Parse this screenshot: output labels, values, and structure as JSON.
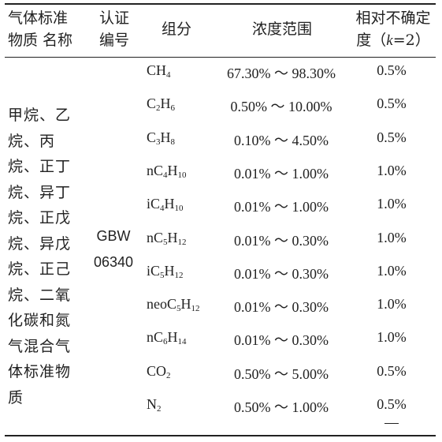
{
  "table": {
    "headers": {
      "name_line1": "气体标准",
      "name_line2": "物质 名称",
      "cert_line1": "认证",
      "cert_line2": "编号",
      "component": "组分",
      "range": "浓度范围",
      "unc_line1": "相对不确定",
      "unc_line2_prefix": "度（",
      "unc_k": "k",
      "unc_line2_suffix": "=2）"
    },
    "name_lines": [
      "甲烷、乙",
      "烷、丙",
      "烷、正丁",
      "烷、异丁",
      "烷、正戊",
      "烷、异戊",
      "烷、正己",
      "烷、二氧",
      "化碳和氮",
      "气混合气",
      "体标准物",
      "质"
    ],
    "cert_lines": [
      "GBW",
      "06340"
    ],
    "rows": [
      {
        "comp": [
          [
            "CH",
            ""
          ],
          [
            "4",
            "sub"
          ]
        ],
        "range": "67.30% ～ 98.30%",
        "unc": "0.5%"
      },
      {
        "comp": [
          [
            "C",
            ""
          ],
          [
            "2",
            "sub"
          ],
          [
            "H",
            ""
          ],
          [
            "6",
            "sub"
          ]
        ],
        "range": "0.50% ～ 10.00%",
        "unc": "0.5%"
      },
      {
        "comp": [
          [
            "C",
            ""
          ],
          [
            "3",
            "sub"
          ],
          [
            "H",
            ""
          ],
          [
            "8",
            "sub"
          ]
        ],
        "range": "0.10% ～ 4.50%",
        "unc": "0.5%"
      },
      {
        "comp": [
          [
            "nC",
            ""
          ],
          [
            "4",
            "sub"
          ],
          [
            "H",
            ""
          ],
          [
            "10",
            "sub"
          ]
        ],
        "range": "0.01% ～ 1.00%",
        "unc": "1.0%"
      },
      {
        "comp": [
          [
            "iC",
            ""
          ],
          [
            "4",
            "sub"
          ],
          [
            "H",
            ""
          ],
          [
            "10",
            "sub"
          ]
        ],
        "range": "0.01% ～ 1.00%",
        "unc": "1.0%"
      },
      {
        "comp": [
          [
            "nC",
            ""
          ],
          [
            "5",
            "sub"
          ],
          [
            "H",
            ""
          ],
          [
            "12",
            "sub"
          ]
        ],
        "range": "0.01% ～ 0.30%",
        "unc": "1.0%"
      },
      {
        "comp": [
          [
            "iC",
            ""
          ],
          [
            "5",
            "sub"
          ],
          [
            "H",
            ""
          ],
          [
            "12",
            "sub"
          ]
        ],
        "range": "0.01% ～ 0.30%",
        "unc": "1.0%"
      },
      {
        "comp": [
          [
            "neoC",
            ""
          ],
          [
            "5",
            "sub"
          ],
          [
            "H",
            ""
          ],
          [
            "12",
            "sub"
          ]
        ],
        "range": "0.01% ～ 0.30%",
        "unc": "1.0%"
      },
      {
        "comp": [
          [
            "nC",
            ""
          ],
          [
            "6",
            "sub"
          ],
          [
            "H",
            ""
          ],
          [
            "14",
            "sub"
          ]
        ],
        "range": "0.01% ～ 0.30%",
        "unc": "1.0%"
      },
      {
        "comp": [
          [
            "CO",
            ""
          ],
          [
            "2",
            "sub"
          ]
        ],
        "range": "0.50% ～ 5.00%",
        "unc": "0.5%"
      },
      {
        "comp": [
          [
            "N",
            ""
          ],
          [
            "2",
            "sub"
          ]
        ],
        "range": "0.50% ～ 1.00%",
        "unc": "0.5%"
      }
    ]
  }
}
